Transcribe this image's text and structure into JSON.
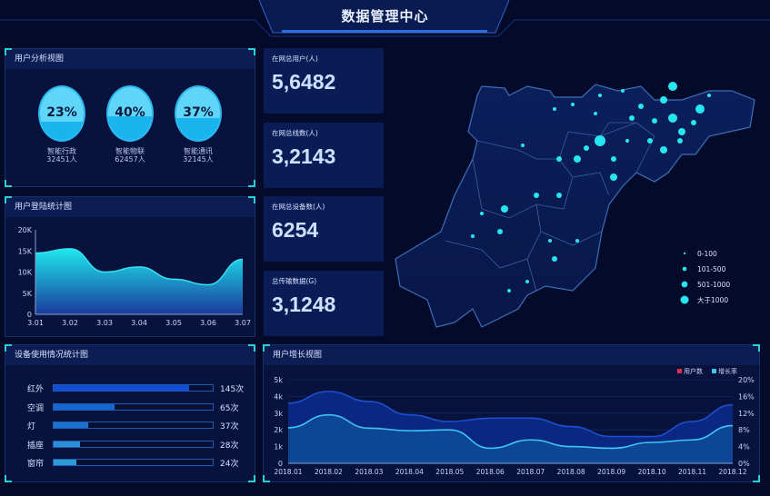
{
  "header": {
    "title": "数据管理中心"
  },
  "user_analysis": {
    "title": "用户分析视图",
    "items": [
      {
        "percent": "23%",
        "fill": 0.23,
        "name": "智能行政",
        "count": "32451人"
      },
      {
        "percent": "40%",
        "fill": 0.4,
        "name": "智能物联",
        "count": "62457人"
      },
      {
        "percent": "37%",
        "fill": 0.37,
        "name": "智能通讯",
        "count": "32145人"
      }
    ]
  },
  "login_chart": {
    "title": "用户登陆统计图"
  },
  "stats": [
    {
      "label": "在网总用户(人)",
      "value": "5,6482"
    },
    {
      "label": "在网总线数(人)",
      "value": "3,2143"
    },
    {
      "label": "在网总设备数(人)",
      "value": "6254"
    },
    {
      "label": "总传输数据(G)",
      "value": "3,1248"
    }
  ],
  "map": {
    "legend": [
      "0-100",
      "101-500",
      "501-1000",
      "大于1000"
    ],
    "dot_color": "#27e6f0"
  },
  "device_usage": {
    "title": "设备使用情况统计图",
    "max": 170,
    "items": [
      {
        "name": "红外",
        "value": 145,
        "label": "145次",
        "color": "#0f4fd8"
      },
      {
        "name": "空调",
        "value": 65,
        "label": "65次",
        "color": "#1566d0"
      },
      {
        "name": "灯",
        "value": 37,
        "label": "37次",
        "color": "#1a73cc"
      },
      {
        "name": "插座",
        "value": 28,
        "label": "28次",
        "color": "#2a8fd4"
      },
      {
        "name": "窗帘",
        "value": 24,
        "label": "24次",
        "color": "#2f9ad8"
      }
    ]
  },
  "growth_chart": {
    "title": "用户增长视图"
  },
  "chart_data": [
    {
      "type": "area",
      "title": "用户登陆统计图",
      "categories": [
        "3.01",
        "3.02",
        "3.03",
        "3.04",
        "3.05",
        "3.06",
        "3.07"
      ],
      "values": [
        14.5,
        15.5,
        10,
        11.2,
        8.3,
        7.0,
        13
      ],
      "yticks": [
        "0",
        "5K",
        "10K",
        "15K",
        "20K"
      ],
      "ylim": [
        0,
        20
      ],
      "grid": false
    },
    {
      "type": "area",
      "title": "用户增长视图",
      "categories": [
        "2018.01",
        "2018.02",
        "2018.03",
        "2018.04",
        "2018.05",
        "2018.06",
        "2018.07",
        "2018.08",
        "2018.09",
        "2018.10",
        "2018.11",
        "2018.12"
      ],
      "series": [
        {
          "name": "用户数",
          "axis": "left",
          "color": "#1d4fd0",
          "values": [
            3.6,
            4.3,
            3.7,
            2.9,
            2.5,
            2.7,
            2.7,
            2.2,
            1.6,
            1.6,
            2.5,
            3.5
          ]
        },
        {
          "name": "增长率",
          "axis": "right",
          "color": "#3ec6f0",
          "values": [
            8.5,
            11.6,
            8.4,
            7.8,
            8.0,
            3.6,
            5.6,
            4.0,
            3.6,
            5.0,
            5.6,
            9.0
          ]
        }
      ],
      "legend_colors": [
        "#e03050",
        "#3ec6f0"
      ],
      "yticks_left": [
        "0",
        "1k",
        "2k",
        "3k",
        "4k",
        "5k"
      ],
      "yticks_right": [
        "0%",
        "4%",
        "8%",
        "12%",
        "16%",
        "20%"
      ],
      "ylim_left": [
        0,
        5
      ],
      "ylim_right": [
        0,
        20
      ],
      "legend": "top-right",
      "grid": true
    }
  ]
}
